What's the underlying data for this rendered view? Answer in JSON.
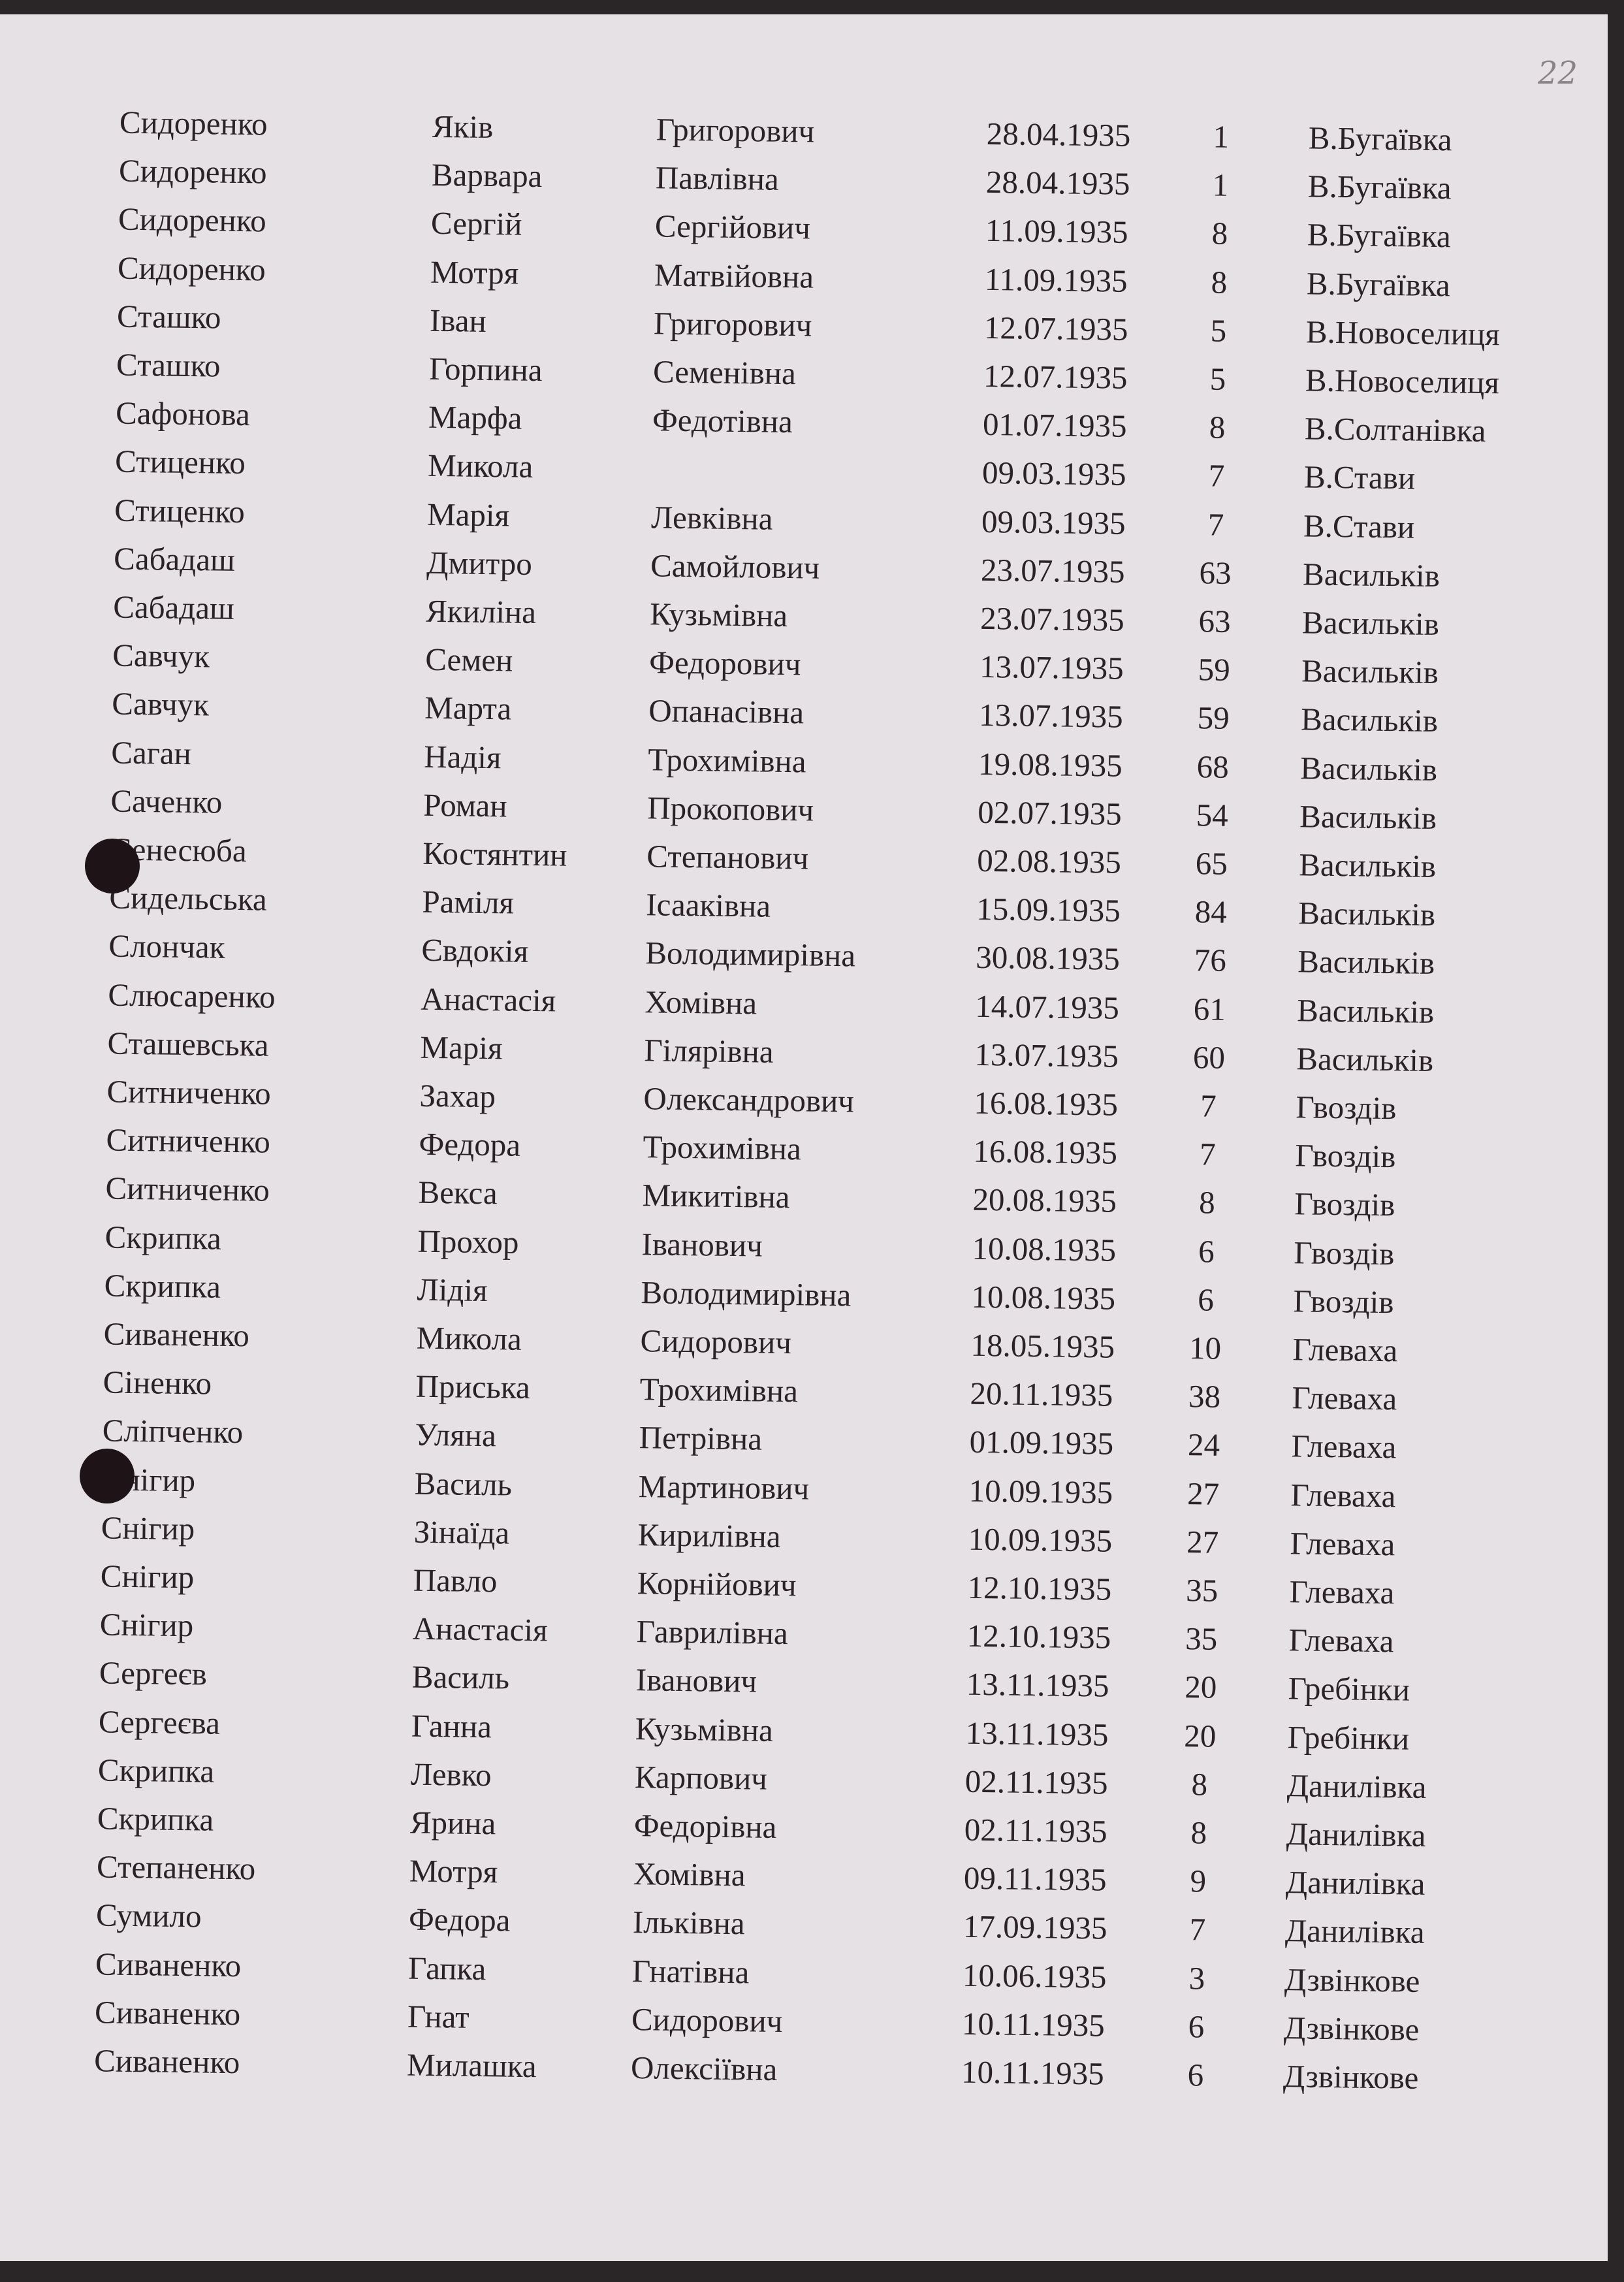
{
  "page_number": "22",
  "rows": [
    [
      "Сидоренко",
      "Яків",
      "Григорович",
      "28.04.1935",
      "1",
      "В.Бугаївка"
    ],
    [
      "Сидоренко",
      "Варвара",
      "Павлівна",
      "28.04.1935",
      "1",
      "В.Бугаївка"
    ],
    [
      "Сидоренко",
      "Сергій",
      "Сергійович",
      "11.09.1935",
      "8",
      "В.Бугаївка"
    ],
    [
      "Сидоренко",
      "Мотря",
      "Матвійовна",
      "11.09.1935",
      "8",
      "В.Бугаївка"
    ],
    [
      "Сташко",
      "Іван",
      "Григорович",
      "12.07.1935",
      "5",
      "В.Новоселиця"
    ],
    [
      "Сташко",
      "Горпина",
      "Семенівна",
      "12.07.1935",
      "5",
      "В.Новоселиця"
    ],
    [
      "Сафонова",
      "Марфа",
      "Федотівна",
      "01.07.1935",
      "8",
      "В.Солтанівка"
    ],
    [
      "Стиценко",
      "Микола",
      "",
      "09.03.1935",
      "7",
      "В.Стави"
    ],
    [
      "Стиценко",
      "Марія",
      "Левківна",
      "09.03.1935",
      "7",
      "В.Стави"
    ],
    [
      "Сабадаш",
      "Дмитро",
      "Самойлович",
      "23.07.1935",
      "63",
      "Васильків"
    ],
    [
      "Сабадаш",
      "Якиліна",
      "Кузьмівна",
      "23.07.1935",
      "63",
      "Васильків"
    ],
    [
      "Савчук",
      "Семен",
      "Федорович",
      "13.07.1935",
      "59",
      "Васильків"
    ],
    [
      "Савчук",
      "Марта",
      "Опанасівна",
      "13.07.1935",
      "59",
      "Васильків"
    ],
    [
      "Саган",
      "Надія",
      "Трохимівна",
      "19.08.1935",
      "68",
      "Васильків"
    ],
    [
      "Саченко",
      "Роман",
      "Прокопович",
      "02.07.1935",
      "54",
      "Васильків"
    ],
    [
      "Сенесюба",
      "Костянтин",
      "Степанович",
      "02.08.1935",
      "65",
      "Васильків"
    ],
    [
      "Сидельська",
      "Раміля",
      "Ісааківна",
      "15.09.1935",
      "84",
      "Васильків"
    ],
    [
      "Слончак",
      "Євдокія",
      "Володимирівна",
      "30.08.1935",
      "76",
      "Васильків"
    ],
    [
      "Слюсаренко",
      "Анастасія",
      "Хомівна",
      "14.07.1935",
      "61",
      "Васильків"
    ],
    [
      "Сташевська",
      "Марія",
      "Гілярівна",
      "13.07.1935",
      "60",
      "Васильків"
    ],
    [
      "Ситниченко",
      "Захар",
      "Олександрович",
      "16.08.1935",
      "7",
      "Гвоздів"
    ],
    [
      "Ситниченко",
      "Федора",
      "Трохимівна",
      "16.08.1935",
      "7",
      "Гвоздів"
    ],
    [
      "Ситниченко",
      "Векса",
      "Микитівна",
      "20.08.1935",
      "8",
      "Гвоздів"
    ],
    [
      "Скрипка",
      "Прохор",
      "Іванович",
      "10.08.1935",
      "6",
      "Гвоздів"
    ],
    [
      "Скрипка",
      "Лідія",
      "Володимирівна",
      "10.08.1935",
      "6",
      "Гвоздів"
    ],
    [
      "Сиваненко",
      "Микола",
      "Сидорович",
      "18.05.1935",
      "10",
      "Глеваха"
    ],
    [
      "Сіненко",
      "Приська",
      "Трохимівна",
      "20.11.1935",
      "38",
      "Глеваха"
    ],
    [
      "Сліпченко",
      "Уляна",
      "Петрівна",
      "01.09.1935",
      "24",
      "Глеваха"
    ],
    [
      "Снігир",
      "Василь",
      "Мартинович",
      "10.09.1935",
      "27",
      "Глеваха"
    ],
    [
      "Снігир",
      "Зінаїда",
      "Кирилівна",
      "10.09.1935",
      "27",
      "Глеваха"
    ],
    [
      "Снігир",
      "Павло",
      "Корнійович",
      "12.10.1935",
      "35",
      "Глеваха"
    ],
    [
      "Снігир",
      "Анастасія",
      "Гаврилівна",
      "12.10.1935",
      "35",
      "Глеваха"
    ],
    [
      "Сергеєв",
      "Василь",
      "Іванович",
      "13.11.1935",
      "20",
      "Гребінки"
    ],
    [
      "Сергеєва",
      "Ганна",
      "Кузьмівна",
      "13.11.1935",
      "20",
      "Гребінки"
    ],
    [
      "Скрипка",
      "Левко",
      "Карпович",
      "02.11.1935",
      "8",
      "Данилівка"
    ],
    [
      "Скрипка",
      "Ярина",
      "Федорівна",
      "02.11.1935",
      "8",
      "Данилівка"
    ],
    [
      "Степаненко",
      "Мотря",
      "Хомівна",
      "09.11.1935",
      "9",
      "Данилівка"
    ],
    [
      "Сумило",
      "Федора",
      "Ільківна",
      "17.09.1935",
      "7",
      "Данилівка"
    ],
    [
      "Сиваненко",
      "Гапка",
      "Гнатівна",
      "10.06.1935",
      "3",
      "Дзвінкове"
    ],
    [
      "Сиваненко",
      "Гнат",
      "Сидорович",
      "10.11.1935",
      "6",
      "Дзвінкове"
    ],
    [
      "Сиваненко",
      "Милашка",
      "Олексіївна",
      "10.11.1935",
      "6",
      "Дзвінкове"
    ]
  ]
}
